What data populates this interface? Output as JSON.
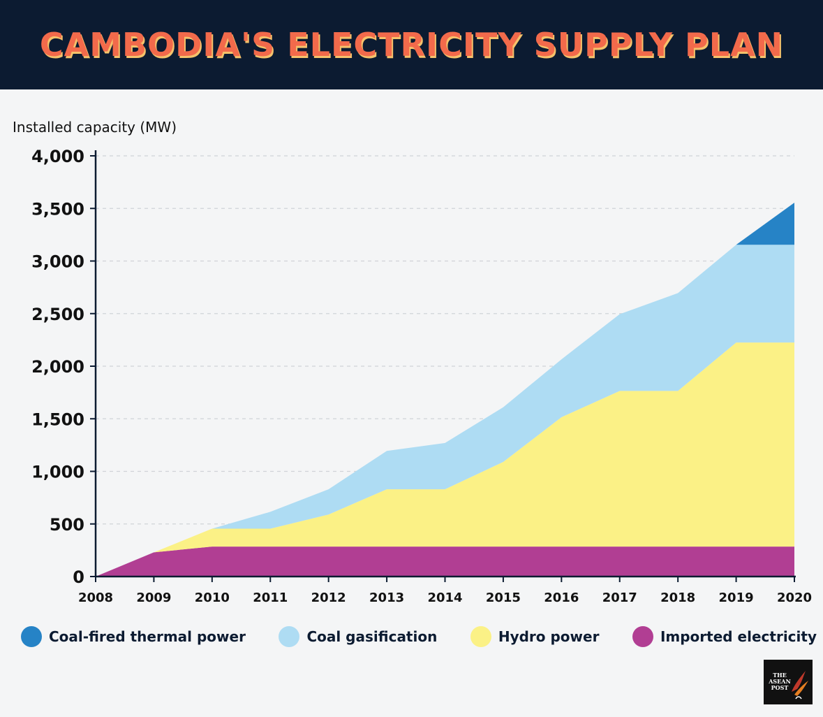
{
  "header": {
    "title": "CAMBODIA'S ELECTRICITY SUPPLY PLAN"
  },
  "colors": {
    "header_bg": "#0c1b31",
    "title": "#f26a4b",
    "background": "#f4f5f6",
    "coal_fired": "#2683c6",
    "coal_gasification": "#aedcf3",
    "hydro": "#fbf186",
    "imported": "#b13e93"
  },
  "chart_data": {
    "type": "area",
    "stacked": true,
    "title": "CAMBODIA'S ELECTRICITY SUPPLY PLAN",
    "ylabel": "Installed capacity (MW)",
    "xlabel": "",
    "x": [
      2008,
      2009,
      2010,
      2011,
      2012,
      2013,
      2014,
      2015,
      2016,
      2017,
      2018,
      2019,
      2020
    ],
    "x_tick_labels": [
      "2008",
      "2009",
      "2010",
      "2011",
      "2012",
      "2013",
      "2014",
      "2015",
      "2016",
      "2017",
      "2018",
      "2019",
      "2020"
    ],
    "ylim": [
      0,
      4000
    ],
    "y_ticks": [
      0,
      500,
      1000,
      1500,
      2000,
      2500,
      3000,
      3500,
      4000
    ],
    "y_tick_labels": [
      "0",
      "500",
      "1,000",
      "1,500",
      "2,000",
      "2,500",
      "3,000",
      "3,500",
      "4,000"
    ],
    "grid": "horizontal dashed",
    "legend_position": "bottom",
    "series": [
      {
        "name": "Imported electricity",
        "color": "#b13e93",
        "values": [
          0,
          230,
          285,
          285,
          285,
          285,
          285,
          285,
          285,
          285,
          285,
          285,
          285
        ]
      },
      {
        "name": "Hydro power",
        "color": "#fbf186",
        "values": [
          0,
          0,
          170,
          170,
          305,
          545,
          545,
          805,
          1230,
          1480,
          1480,
          1940,
          1940
        ]
      },
      {
        "name": "Coal gasification",
        "color": "#aedcf3",
        "values": [
          0,
          0,
          0,
          160,
          240,
          365,
          440,
          520,
          550,
          730,
          930,
          930,
          930
        ]
      },
      {
        "name": "Coal-fired thermal power",
        "color": "#2683c6",
        "values": [
          0,
          0,
          0,
          0,
          0,
          0,
          0,
          0,
          0,
          0,
          0,
          0,
          400
        ]
      }
    ]
  },
  "legend": {
    "items": [
      {
        "label": "Coal-fired thermal power",
        "color": "#2683c6"
      },
      {
        "label": "Coal gasification",
        "color": "#aedcf3"
      },
      {
        "label": "Hydro power",
        "color": "#fbf186"
      },
      {
        "label": "Imported electricity",
        "color": "#b13e93"
      }
    ]
  },
  "logo": {
    "lines": [
      "THE",
      "ASEAN",
      "POST"
    ]
  }
}
